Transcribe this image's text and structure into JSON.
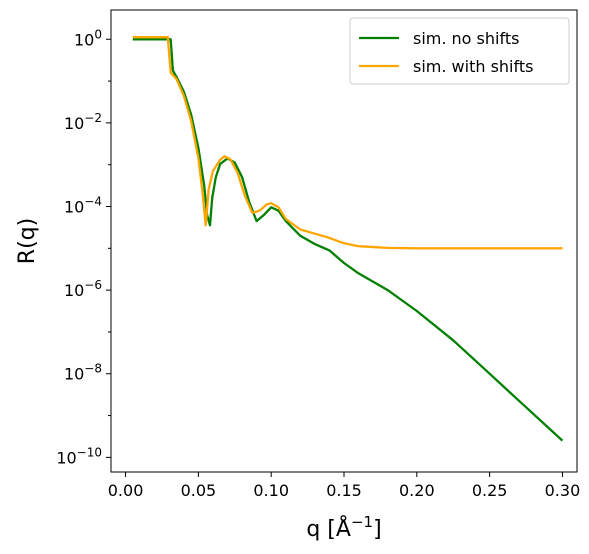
{
  "chart_data": {
    "type": "line",
    "xlabel": "q [Å",
    "xlabel_exp": "−1",
    "xlabel_close": "]",
    "ylabel": "R(q)",
    "y_scale": "log",
    "xlim": [
      -0.01,
      0.31
    ],
    "ylim_log10": [
      -10.35,
      0.7
    ],
    "x_ticks": [
      {
        "value": 0.0,
        "label": "0.00"
      },
      {
        "value": 0.05,
        "label": "0.05"
      },
      {
        "value": 0.1,
        "label": "0.10"
      },
      {
        "value": 0.15,
        "label": "0.15"
      },
      {
        "value": 0.2,
        "label": "0.20"
      },
      {
        "value": 0.25,
        "label": "0.25"
      },
      {
        "value": 0.3,
        "label": "0.30"
      }
    ],
    "y_ticks": [
      {
        "exp": 0,
        "base": "10",
        "sup": "0"
      },
      {
        "exp": -2,
        "base": "10",
        "sup": "−2"
      },
      {
        "exp": -4,
        "base": "10",
        "sup": "−4"
      },
      {
        "exp": -6,
        "base": "10",
        "sup": "−6"
      },
      {
        "exp": -8,
        "base": "10",
        "sup": "−8"
      },
      {
        "exp": -10,
        "base": "10",
        "sup": "−10"
      }
    ],
    "legend_position": "top-right",
    "grid": false,
    "series": [
      {
        "name": "sim. no shifts",
        "color": "#008000",
        "points": [
          [
            0.005,
            0
          ],
          [
            0.031,
            0
          ],
          [
            0.0325,
            -0.75
          ],
          [
            0.035,
            -0.9
          ],
          [
            0.04,
            -1.25
          ],
          [
            0.045,
            -1.8
          ],
          [
            0.05,
            -2.6
          ],
          [
            0.054,
            -3.5
          ],
          [
            0.056,
            -4.2
          ],
          [
            0.058,
            -4.45
          ],
          [
            0.0595,
            -3.8
          ],
          [
            0.062,
            -3.3
          ],
          [
            0.065,
            -2.98
          ],
          [
            0.07,
            -2.85
          ],
          [
            0.075,
            -2.95
          ],
          [
            0.08,
            -3.3
          ],
          [
            0.085,
            -3.9
          ],
          [
            0.09,
            -4.35
          ],
          [
            0.095,
            -4.2
          ],
          [
            0.1,
            -4.02
          ],
          [
            0.105,
            -4.1
          ],
          [
            0.11,
            -4.35
          ],
          [
            0.12,
            -4.7
          ],
          [
            0.13,
            -4.9
          ],
          [
            0.14,
            -5.05
          ],
          [
            0.15,
            -5.35
          ],
          [
            0.16,
            -5.6
          ],
          [
            0.18,
            -6.0
          ],
          [
            0.2,
            -6.5
          ],
          [
            0.225,
            -7.2
          ],
          [
            0.25,
            -8.0
          ],
          [
            0.275,
            -8.8
          ],
          [
            0.3,
            -9.6
          ]
        ]
      },
      {
        "name": "sim. with shifts",
        "color": "#ffa500",
        "points": [
          [
            0.005,
            0.05
          ],
          [
            0.029,
            0.05
          ],
          [
            0.031,
            -0.8
          ],
          [
            0.035,
            -0.95
          ],
          [
            0.04,
            -1.35
          ],
          [
            0.045,
            -1.95
          ],
          [
            0.05,
            -2.85
          ],
          [
            0.053,
            -3.7
          ],
          [
            0.055,
            -4.45
          ],
          [
            0.057,
            -3.6
          ],
          [
            0.06,
            -3.15
          ],
          [
            0.065,
            -2.88
          ],
          [
            0.068,
            -2.8
          ],
          [
            0.072,
            -2.87
          ],
          [
            0.077,
            -3.2
          ],
          [
            0.082,
            -3.75
          ],
          [
            0.087,
            -4.15
          ],
          [
            0.092,
            -4.1
          ],
          [
            0.097,
            -3.95
          ],
          [
            0.1,
            -3.92
          ],
          [
            0.105,
            -4.02
          ],
          [
            0.11,
            -4.3
          ],
          [
            0.12,
            -4.55
          ],
          [
            0.13,
            -4.65
          ],
          [
            0.14,
            -4.75
          ],
          [
            0.15,
            -4.88
          ],
          [
            0.16,
            -4.95
          ],
          [
            0.18,
            -4.99
          ],
          [
            0.2,
            -5.0
          ],
          [
            0.25,
            -5.0
          ],
          [
            0.3,
            -5.0
          ]
        ]
      }
    ]
  }
}
